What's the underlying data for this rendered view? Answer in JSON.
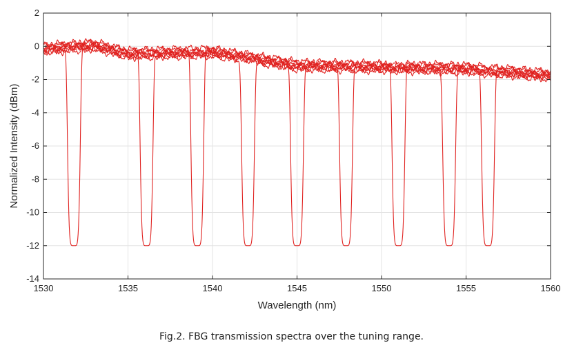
{
  "chart_data": {
    "type": "line",
    "title": "",
    "xlabel": "Wavelength (nm)",
    "ylabel": "Normalized Intensity (dBm)",
    "xlim": [
      1530,
      1560
    ],
    "ylim": [
      -14,
      2
    ],
    "x_ticks": [
      "1530",
      "1535",
      "1540",
      "1545",
      "1550",
      "1555",
      "1560"
    ],
    "y_ticks": [
      "2",
      "0",
      "-2",
      "-4",
      "-6",
      "-8",
      "-10",
      "-12",
      "-14"
    ],
    "grid": true,
    "line_color": "#e0211f",
    "baseline": [
      [
        1530,
        0.0
      ],
      [
        1533,
        0.2
      ],
      [
        1535,
        -0.3
      ],
      [
        1540,
        -0.2
      ],
      [
        1545,
        -1.0
      ],
      [
        1550,
        -1.1
      ],
      [
        1555,
        -1.2
      ],
      [
        1560,
        -1.6
      ]
    ],
    "series": [
      {
        "center": 1531.8,
        "min": -12,
        "offset": -0.3
      },
      {
        "center": 1536.1,
        "min": -12,
        "offset": -0.2
      },
      {
        "center": 1539.1,
        "min": -12,
        "offset": 0.0
      },
      {
        "center": 1542.1,
        "min": -12,
        "offset": -0.4
      },
      {
        "center": 1545.0,
        "min": -12,
        "offset": -0.1
      },
      {
        "center": 1547.9,
        "min": -12,
        "offset": -0.3
      },
      {
        "center": 1551.0,
        "min": -12,
        "offset": 0.1
      },
      {
        "center": 1554.0,
        "min": -12,
        "offset": -0.2
      },
      {
        "center": 1556.3,
        "min": -12,
        "offset": 0.0
      }
    ]
  },
  "caption": "Fig.2. FBG transmission spectra over the tuning range."
}
